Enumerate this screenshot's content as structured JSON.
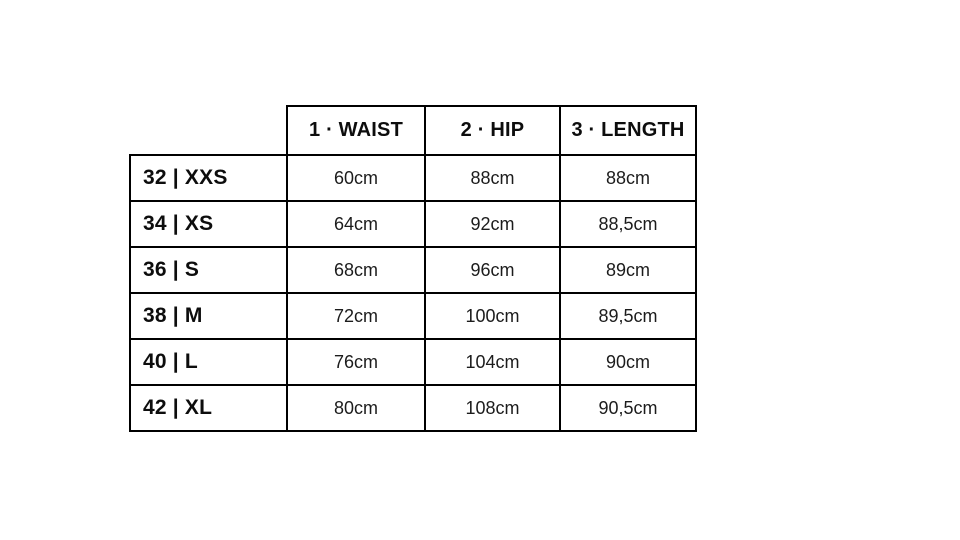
{
  "page": {
    "background_color": "#ffffff",
    "border_color": "#000000",
    "text_color": "#111111"
  },
  "chart_data": {
    "type": "table",
    "header": [
      "",
      "1 · WAIST",
      "2 · HIP",
      "3 · LENGTH"
    ],
    "rows": [
      [
        "32 | XXS",
        "60cm",
        "88cm",
        "88cm"
      ],
      [
        "34 | XS",
        "64cm",
        "92cm",
        "88,5cm"
      ],
      [
        "36 | S",
        "68cm",
        "96cm",
        "89cm"
      ],
      [
        "38 | M",
        "72cm",
        "100cm",
        "89,5cm"
      ],
      [
        "40 | L",
        "76cm",
        "104cm",
        "90cm"
      ],
      [
        "42 | XL",
        "80cm",
        "108cm",
        "90,5cm"
      ]
    ],
    "layout_hints": {
      "corner_cell_blank": true,
      "row_label_alignment": "left",
      "value_alignment": "center",
      "grid": "on"
    }
  }
}
